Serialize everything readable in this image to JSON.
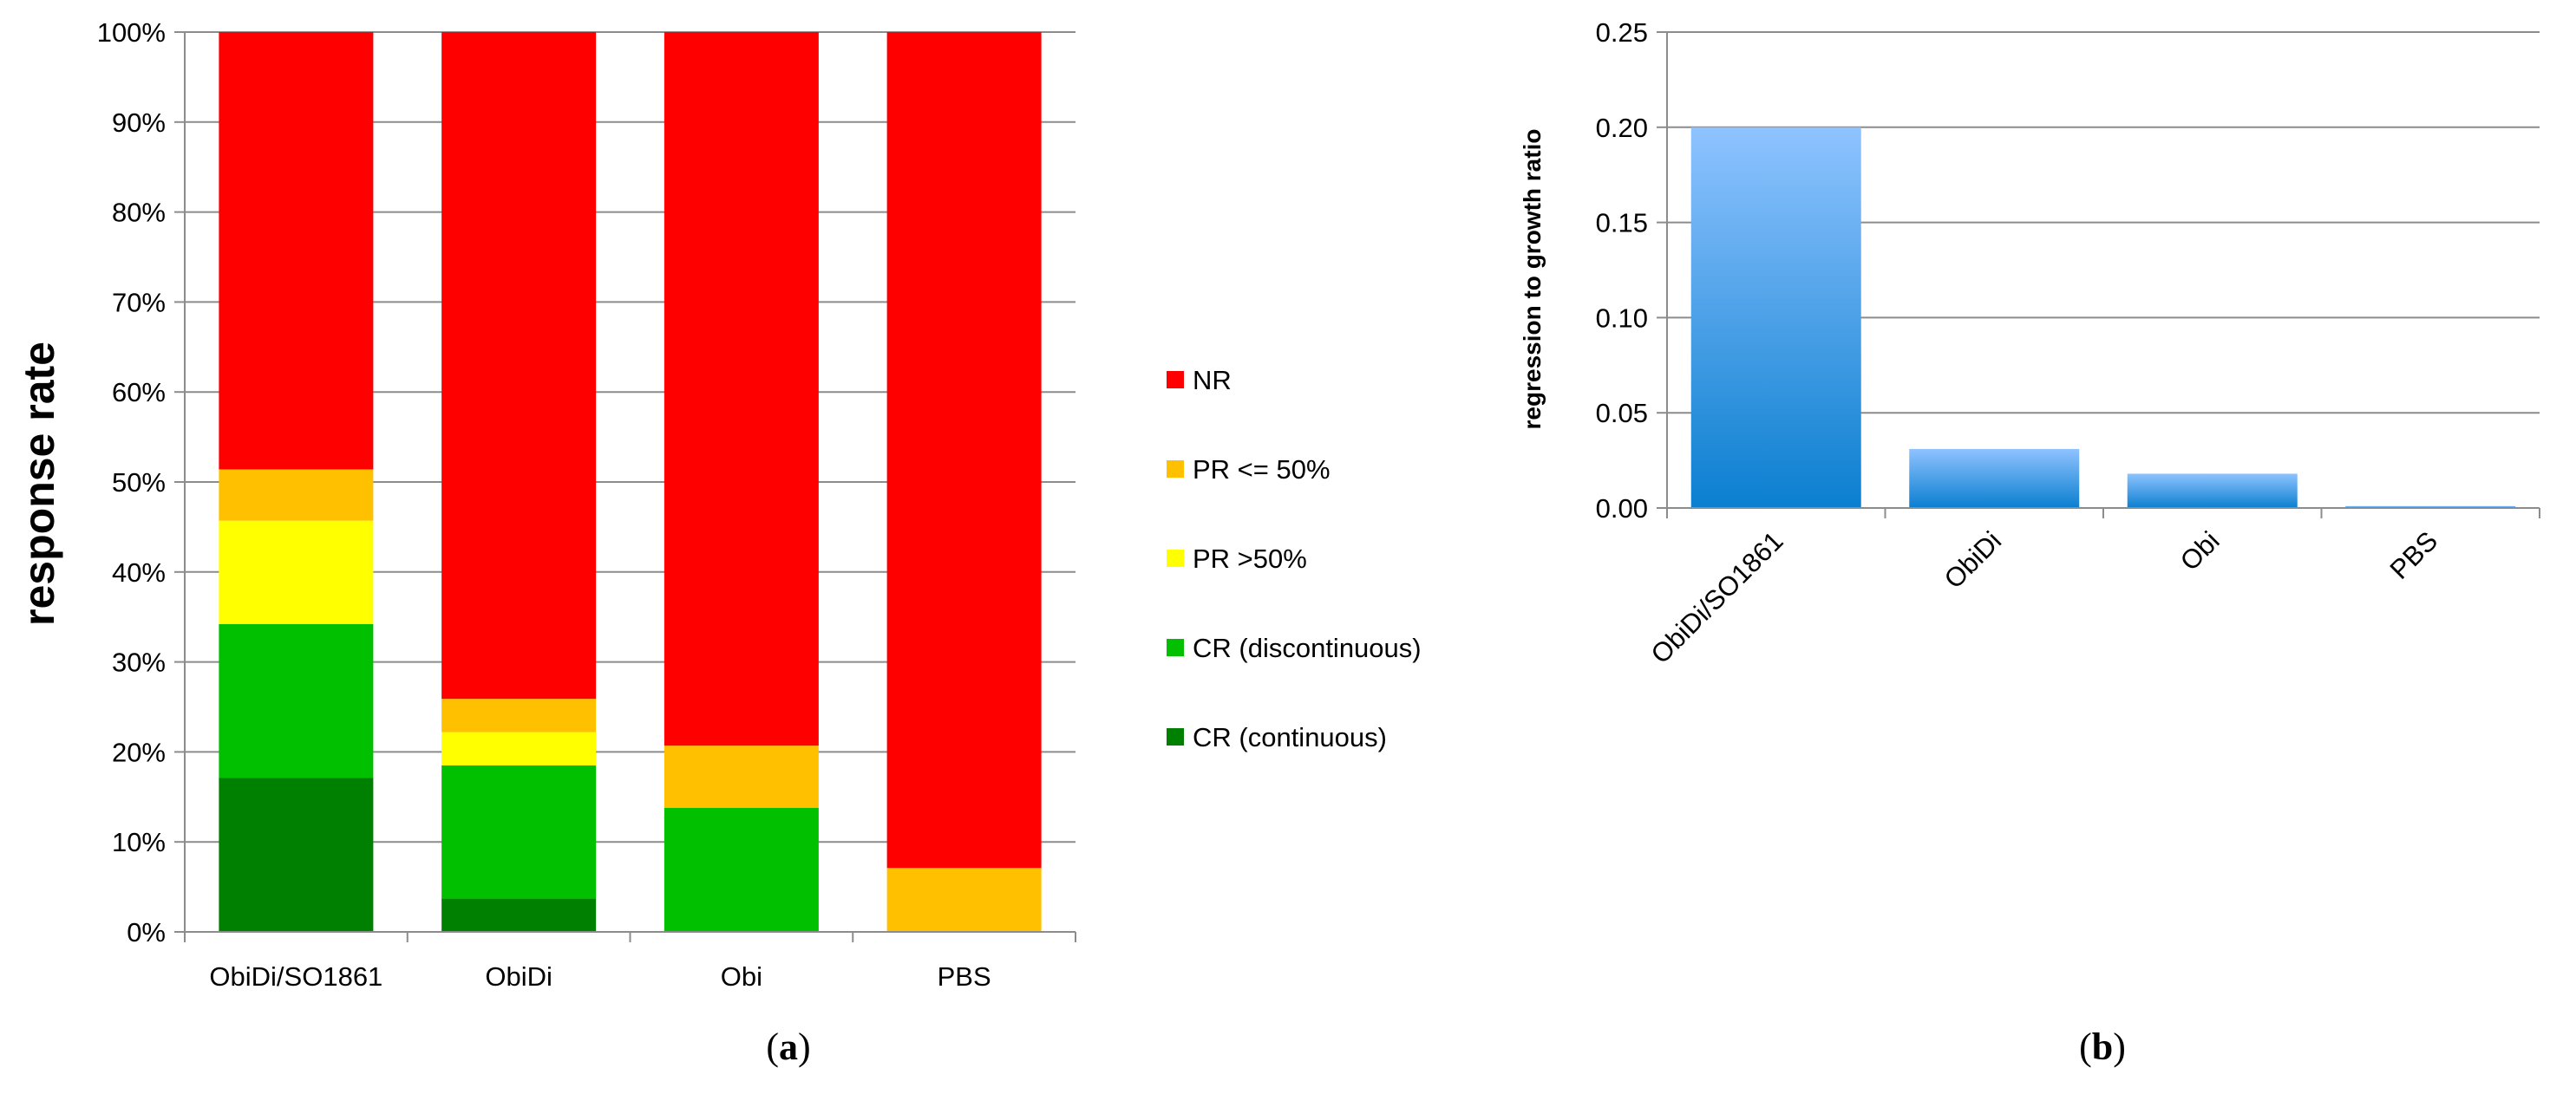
{
  "panel_labels": {
    "a": {
      "open": "(",
      "letter": "a",
      "close": ")"
    },
    "b": {
      "open": "(",
      "letter": "b",
      "close": ")"
    }
  },
  "chart_data": [
    {
      "id": "a",
      "type": "bar",
      "stacked": true,
      "title": "",
      "xlabel": "",
      "ylabel": "response rate",
      "ylim": [
        0,
        100
      ],
      "ytick_values": [
        0,
        10,
        20,
        30,
        40,
        50,
        60,
        70,
        80,
        90,
        100
      ],
      "ytick_labels": [
        "0%",
        "10%",
        "20%",
        "30%",
        "40%",
        "50%",
        "60%",
        "70%",
        "80%",
        "90%",
        "100%"
      ],
      "grid": true,
      "legend_position": "right",
      "categories": [
        "ObiDi/SO1861",
        "ObiDi",
        "Obi",
        "PBS"
      ],
      "series": [
        {
          "name": "CR (continuous)",
          "color": "#008000",
          "values": [
            17.1,
            3.7,
            0,
            0
          ]
        },
        {
          "name": "CR (discontinuous)",
          "color": "#00c000",
          "values": [
            17.1,
            14.8,
            13.8,
            0
          ]
        },
        {
          "name": "PR >50%",
          "color": "#ffff00",
          "values": [
            11.5,
            3.7,
            0,
            0
          ]
        },
        {
          "name": "PR <= 50%",
          "color": "#ffc000",
          "values": [
            5.7,
            3.7,
            6.9,
            7.1
          ]
        },
        {
          "name": "NR",
          "color": "#ff0000",
          "values": [
            48.6,
            74.1,
            79.3,
            92.9
          ]
        }
      ],
      "legend_order": [
        "NR",
        "PR <= 50%",
        "PR >50%",
        "CR (discontinuous)",
        "CR (continuous)"
      ]
    },
    {
      "id": "b",
      "type": "bar",
      "title": "",
      "xlabel": "",
      "ylabel": "regression to growth ratio",
      "ylim": [
        0,
        0.25
      ],
      "ytick_values": [
        0,
        0.05,
        0.1,
        0.15,
        0.2,
        0.25
      ],
      "ytick_labels": [
        "0.00",
        "0.05",
        "0.10",
        "0.15",
        "0.20",
        "0.25"
      ],
      "grid": true,
      "categories": [
        "ObiDi/SO1861",
        "ObiDi",
        "Obi",
        "PBS"
      ],
      "values": [
        0.2,
        0.031,
        0.018,
        0.001
      ],
      "colors": {
        "top": "#8ec3ff",
        "bottom": "#0b7fd0"
      }
    }
  ]
}
